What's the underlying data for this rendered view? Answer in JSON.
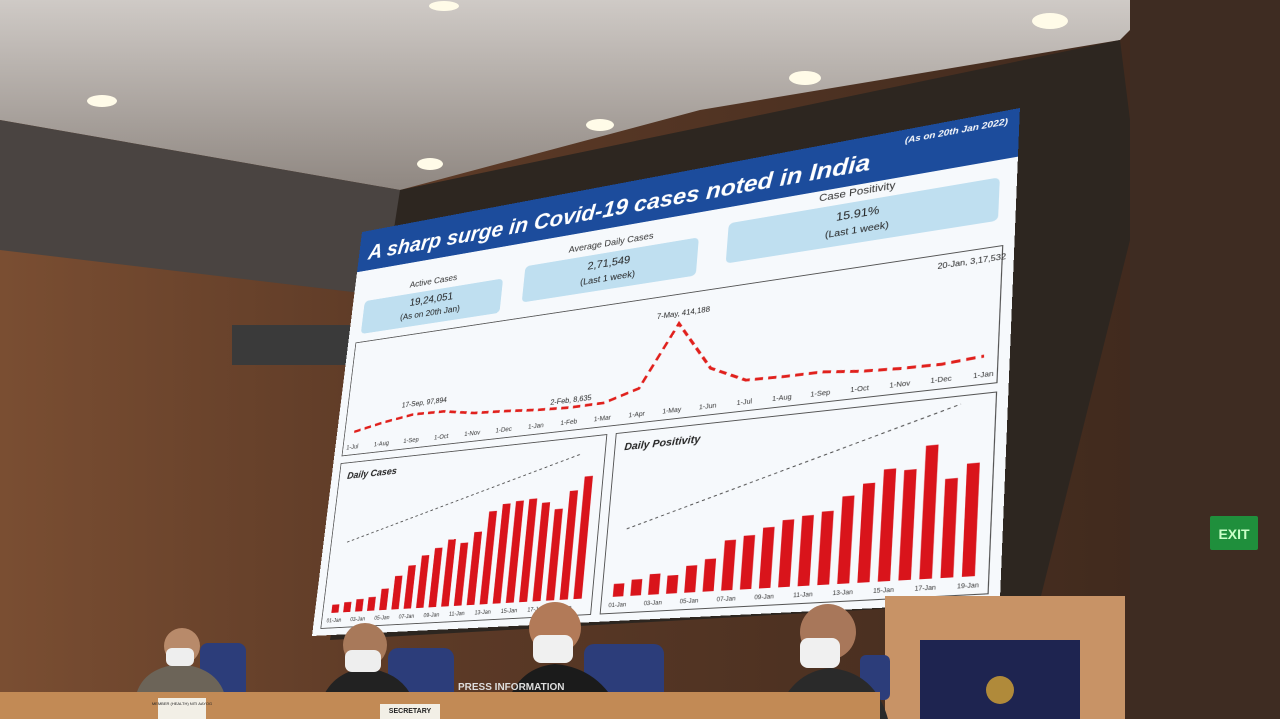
{
  "screen": {
    "title": "A sharp surge in Covid-19 cases noted in India",
    "date_note": "(As on 20th Jan 2022)",
    "kpis": [
      {
        "label": "Active Cases",
        "value": "19,24,051",
        "note": "(As on 20th Jan)"
      },
      {
        "label": "Average Daily Cases",
        "value": "2,71,549",
        "note": "(Last 1 week)"
      },
      {
        "label": "Case Positivity",
        "value": "15.91%",
        "note": "(Last 1 week)"
      }
    ]
  },
  "chart_data": [
    {
      "type": "line",
      "color": "#e0201c",
      "ylim": [
        0,
        450000
      ],
      "categories": [
        "1-Jul",
        "1-Aug",
        "1-Sep",
        "1-Oct",
        "1-Nov",
        "1-Dec",
        "1-Jan",
        "1-Feb",
        "1-Mar",
        "1-Apr",
        "1-May",
        "1-Jun",
        "1-Jul",
        "1-Aug",
        "1-Sep",
        "1-Oct",
        "1-Nov",
        "1-Dec",
        "1-Jan"
      ],
      "values": [
        20000,
        55000,
        80000,
        75000,
        45000,
        35000,
        20000,
        12000,
        15000,
        70000,
        390000,
        130000,
        45000,
        40000,
        40000,
        20000,
        10000,
        7000,
        22000
      ],
      "annotations": [
        "17-Sep, 97,894",
        "2-Feb, 8,635",
        "7-May, 414,188",
        "20-Jan, 3,17,532"
      ]
    },
    {
      "type": "bar",
      "title": "Daily Cases",
      "color": "#d9141b",
      "ylim": [
        0,
        350000
      ],
      "categories": [
        "01-Jan",
        null,
        "03-Jan",
        null,
        "05-Jan",
        null,
        "07-Jan",
        null,
        "09-Jan",
        null,
        "11-Jan",
        null,
        "13-Jan",
        null,
        "15-Jan",
        null,
        "17-Jan",
        null,
        "19-Jan",
        null
      ],
      "values": [
        22775,
        27553,
        33750,
        37379,
        58097,
        90928,
        117100,
        141986,
        159632,
        179723,
        168063,
        194720,
        247417,
        264202,
        268833,
        271202,
        258089,
        238018,
        282970,
        317532
      ]
    },
    {
      "type": "bar",
      "title": "Daily Positivity",
      "color": "#d9141b",
      "ylim": [
        0,
        22
      ],
      "categories": [
        "01-Jan",
        null,
        "03-Jan",
        null,
        "05-Jan",
        null,
        "07-Jan",
        null,
        "09-Jan",
        null,
        "11-Jan",
        null,
        "13-Jan",
        null,
        "15-Jan",
        null,
        "17-Jan",
        null,
        "19-Jan"
      ],
      "values": [
        2.05,
        2.55,
        3.24,
        2.84,
        4.18,
        5.03,
        7.74,
        8.25,
        9.28,
        10.21,
        10.64,
        11.05,
        13.11,
        14.78,
        16.66,
        16.28,
        19.65,
        14.43,
        16.41
      ]
    }
  ],
  "room": {
    "exit_sign": "EXIT",
    "banner": "PRESS INFORMATION",
    "nameplates": [
      "MEMBER (HEALTH) NITI AAYOG",
      "SECRETARY"
    ]
  }
}
